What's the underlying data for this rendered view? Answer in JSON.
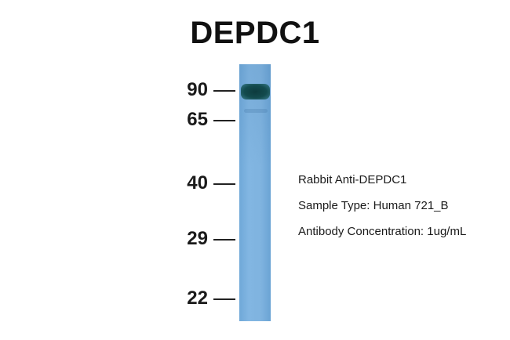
{
  "title": "DEPDC1",
  "markers": [
    {
      "label": "90"
    },
    {
      "label": "65"
    },
    {
      "label": "40"
    },
    {
      "label": "29"
    },
    {
      "label": "22"
    }
  ],
  "info": {
    "antibody": "Rabbit Anti-DEPDC1",
    "sample_type": "Sample Type: Human 721_B",
    "concentration": "Antibody Concentration: 1ug/mL"
  },
  "colors": {
    "lane": "#7fb3df",
    "band": "#134b4e"
  }
}
